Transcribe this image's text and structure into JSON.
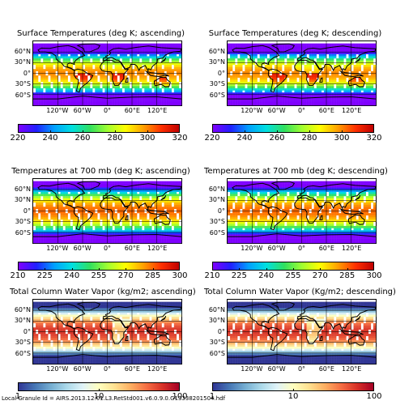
{
  "colors": {
    "jet": [
      "#7f00ff",
      "#2020ff",
      "#00a0ff",
      "#00e0e0",
      "#30e060",
      "#a0ff30",
      "#ffff00",
      "#ffa000",
      "#ff3000",
      "#c00000"
    ],
    "rdylbu_r": [
      "#313695",
      "#4575b4",
      "#74add1",
      "#abd9e9",
      "#e0f3f8",
      "#ffffbf",
      "#fee090",
      "#fdae61",
      "#f46d43",
      "#d73027",
      "#a50026"
    ]
  },
  "lat_labels": [
    "60°N",
    "30°N",
    "0°",
    "30°S",
    "60°S"
  ],
  "lon_labels": [
    "120°W",
    "60°W",
    "0°",
    "60°E",
    "120°E"
  ],
  "footer": "Local Granule Id = AIRS.2013.12.01.L3.RetStd001.v6.0.9.0.G13338201504.hdf",
  "chart_data": [
    {
      "type": "heatmap",
      "title": "Surface Temperatures (deg K; ascending)",
      "colormap": "jet",
      "colorbar": {
        "range": [
          220,
          320
        ],
        "ticks": [
          "220",
          "240",
          "260",
          "280",
          "300",
          "320"
        ]
      },
      "x_ticks": [
        "120°W",
        "60°W",
        "0°",
        "60°E",
        "120°E"
      ],
      "y_ticks": [
        "60°N",
        "30°N",
        "0°",
        "30°S",
        "60°S"
      ]
    },
    {
      "type": "heatmap",
      "title": "Surface Temperatures (deg K; descending)",
      "colormap": "jet",
      "colorbar": {
        "range": [
          220,
          320
        ],
        "ticks": [
          "220",
          "240",
          "260",
          "280",
          "300",
          "320"
        ]
      },
      "x_ticks": [
        "120°W",
        "60°W",
        "0°",
        "60°E",
        "120°E"
      ],
      "y_ticks": [
        "60°N",
        "30°N",
        "0°",
        "30°S",
        "60°S"
      ]
    },
    {
      "type": "heatmap",
      "title": "Temperatures at 700 mb (deg K; ascending)",
      "colormap": "jet",
      "colorbar": {
        "range": [
          210,
          300
        ],
        "ticks": [
          "210",
          "225",
          "240",
          "255",
          "270",
          "285",
          "300"
        ]
      },
      "x_ticks": [
        "120°W",
        "60°W",
        "0°",
        "60°E",
        "120°E"
      ],
      "y_ticks": [
        "60°N",
        "30°N",
        "0°",
        "30°S",
        "60°S"
      ]
    },
    {
      "type": "heatmap",
      "title": "Temperatures at 700 mb (deg K; descending)",
      "colormap": "jet",
      "colorbar": {
        "range": [
          210,
          300
        ],
        "ticks": [
          "210",
          "225",
          "240",
          "255",
          "270",
          "285",
          "300"
        ]
      },
      "x_ticks": [
        "120°W",
        "60°W",
        "0°",
        "60°E",
        "120°E"
      ],
      "y_ticks": [
        "60°N",
        "30°N",
        "0°",
        "30°S",
        "60°S"
      ]
    },
    {
      "type": "heatmap",
      "title": "Total Column Water Vapor (kg/m2; ascending)",
      "colormap": "rdylbu_r",
      "colorbar": {
        "range": [
          1,
          100
        ],
        "scale": "log",
        "ticks": [
          "1",
          "10",
          "100"
        ]
      },
      "x_ticks": [
        "120°W",
        "60°W",
        "0°",
        "60°E",
        "120°E"
      ],
      "y_ticks": [
        "60°N",
        "30°N",
        "0°",
        "30°S",
        "60°S"
      ]
    },
    {
      "type": "heatmap",
      "title": "Total Column Water Vapor (Kg/m2; descending)",
      "colormap": "rdylbu_r",
      "colorbar": {
        "range": [
          1,
          100
        ],
        "scale": "log",
        "ticks": [
          "1",
          "10",
          "100"
        ]
      },
      "x_ticks": [
        "120°W",
        "60°W",
        "0°",
        "60°E",
        "120°E"
      ],
      "y_ticks": [
        "60°N",
        "30°N",
        "0°",
        "30°S",
        "60°S"
      ]
    }
  ]
}
